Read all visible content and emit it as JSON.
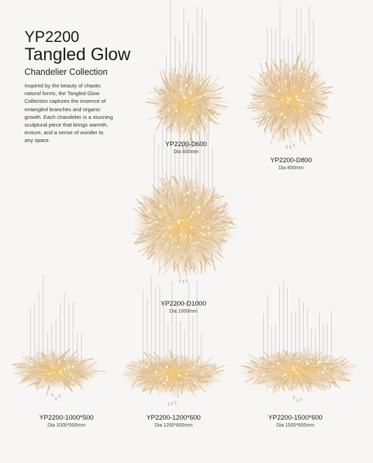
{
  "header": {
    "code": "YP2200",
    "title": "Tangled Glow",
    "subtitle": "Chandelier Collection"
  },
  "description": [
    "Inspired by the beauty of chaotic",
    "natural forms, the Tangled Glow",
    "Collection captures the essence of",
    "entangled branches and organic",
    "growth. Each chandelier is a stunning",
    "sculptural piece that brings warmth,",
    "texture, and a sense of wonder to",
    "any space."
  ],
  "products": [
    {
      "model": "YP2200-D600",
      "size": "Dia 600mm"
    },
    {
      "model": "YP2200-D800",
      "size": "Dia 800mm"
    },
    {
      "model": "YP2200-D1000",
      "size": "Dia 1000mm"
    },
    {
      "model": "YP2200-1000*500",
      "size": "Dia 1000*500mm"
    },
    {
      "model": "YP2200-1200*600",
      "size": "Dia 1200*600mm"
    },
    {
      "model": "YP2200-1500*600",
      "size": "Dia 1500*600mm"
    }
  ]
}
